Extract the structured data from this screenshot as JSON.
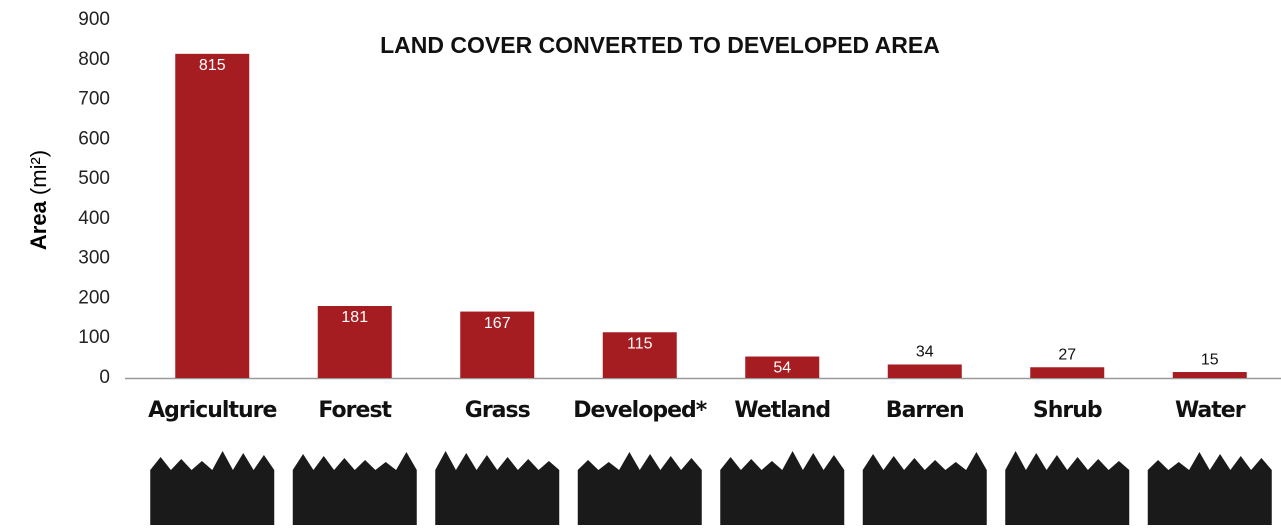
{
  "chart_data": {
    "type": "bar",
    "title": "LAND COVER CONVERTED TO DEVELOPED AREA",
    "y_label": [
      "Area",
      "(mi²)"
    ],
    "categories": [
      "Agriculture",
      "Forest",
      "Grass",
      "Developed*",
      "Wetland",
      "Barren",
      "Shrub",
      "Water"
    ],
    "values": [
      815,
      181,
      167,
      115,
      54,
      34,
      27,
      15
    ],
    "color": "#a51c21",
    "ylim": [
      0,
      900
    ],
    "yticks": [
      0,
      100,
      200,
      300,
      400,
      500,
      600,
      700,
      800,
      900
    ],
    "grid": false
  }
}
